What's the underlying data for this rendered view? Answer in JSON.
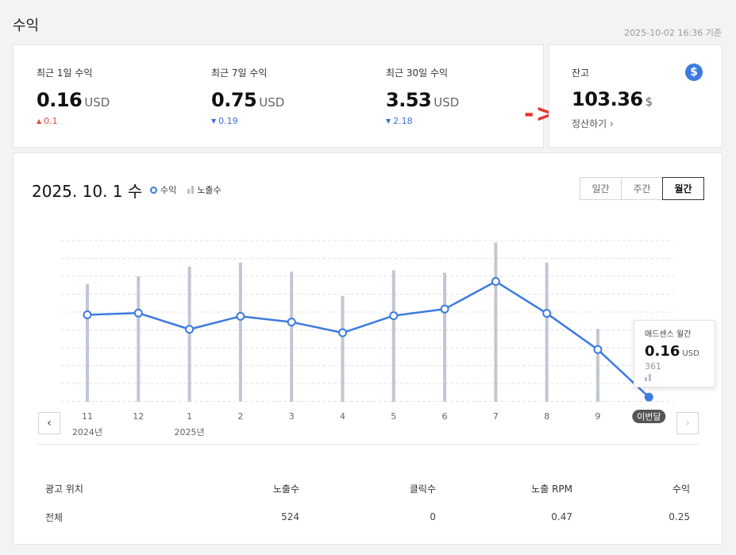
{
  "page": {
    "title": "수익",
    "timestamp": "2025-10-02 16:36 기준"
  },
  "summary": {
    "stats": [
      {
        "label": "최근 1일 수익",
        "value": "0.16",
        "unit": "USD",
        "change": "0.1",
        "direction": "up"
      },
      {
        "label": "최근 7일 수익",
        "value": "0.75",
        "unit": "USD",
        "change": "0.19",
        "direction": "down"
      },
      {
        "label": "최근 30일 수익",
        "value": "3.53",
        "unit": "USD",
        "change": "2.18",
        "direction": "down"
      }
    ],
    "up_symbol": "▲",
    "down_symbol": "▼"
  },
  "balance": {
    "label": "잔고",
    "icon": "dollar-icon",
    "icon_glyph": "$",
    "value": "103.36",
    "unit": "$",
    "link": "정산하기 ›"
  },
  "annotation": {
    "text": "->",
    "color": "#e8312f"
  },
  "chart": {
    "title": "2025. 10. 1 수",
    "legend": {
      "revenue": "수익",
      "impressions": "노출수"
    },
    "tabs": [
      {
        "label": "일간",
        "active": false
      },
      {
        "label": "주간",
        "active": false
      },
      {
        "label": "월간",
        "active": true
      }
    ],
    "nav": {
      "prev": "‹",
      "next": "›"
    },
    "tooltip": {
      "label": "애드센스 월간",
      "value": "0.16",
      "unit": "USD",
      "impressions": "361"
    },
    "colors": {
      "line": "#3d7be0",
      "bar": "#c0c7d2",
      "grid": "#e3e3e3"
    }
  },
  "chart_data": {
    "type": "line",
    "categories": [
      "11",
      "12",
      "1",
      "2",
      "3",
      "4",
      "5",
      "6",
      "7",
      "8",
      "9",
      "이번달"
    ],
    "year_labels": [
      "2024년",
      "",
      "2025년",
      "",
      "",
      "",
      "",
      "",
      "",
      "",
      "",
      ""
    ],
    "series": [
      {
        "name": "수익",
        "type": "line",
        "values": [
          3.0,
          3.06,
          2.5,
          2.95,
          2.75,
          2.38,
          2.97,
          3.2,
          4.15,
          3.05,
          1.8,
          0.16
        ]
      },
      {
        "name": "노출수",
        "type": "bar",
        "values": [
          3300,
          3510,
          3780,
          3900,
          3640,
          2960,
          3680,
          3610,
          4460,
          3890,
          2040,
          361
        ]
      }
    ],
    "current_label_badge": "이번달"
  },
  "table": {
    "headers": [
      "광고 위치",
      "노출수",
      "클릭수",
      "노출 RPM",
      "수익"
    ],
    "rows": [
      [
        "전체",
        "524",
        "0",
        "0.47",
        "0.25"
      ]
    ]
  }
}
